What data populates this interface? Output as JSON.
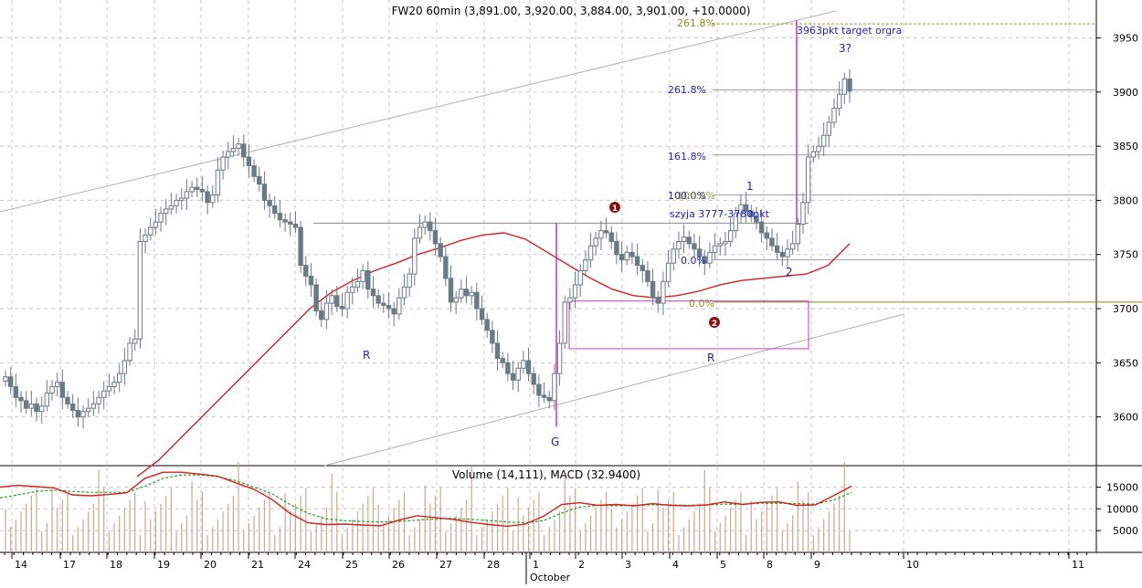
{
  "title": "FW20 60min (3,891.00, 3,920.00, 3,884.00, 3,901.00, +10.0000)",
  "lower_title": "Volume (14,111), MACD (32.9400)",
  "price_ticks": [
    "3600",
    "3650",
    "3700",
    "3750",
    "3800",
    "3850",
    "3900",
    "3950"
  ],
  "lower_ticks": [
    "5000",
    "10000",
    "15000"
  ],
  "date_labels": [
    "14",
    "17",
    "18",
    "19",
    "20",
    "21",
    "24",
    "25",
    "26",
    "27",
    "28",
    "1",
    "2",
    "3",
    "4",
    "5",
    "8",
    "9",
    "10",
    "11"
  ],
  "month_label": "October",
  "annotations": {
    "fib_top_1": "261.8%",
    "fib_top_2": "261.8%",
    "fib_161": "161.8%",
    "fib_100_a": "100.0%",
    "fib_100_b": "100.0%",
    "fib_0_a": "0.0%",
    "fib_0_b": "0.0%",
    "target": "3963pkt target orgra",
    "wave3": "3?",
    "wave1": "1",
    "wave2": "2",
    "neck": "szyja 3777-3780pkt",
    "marker1": "1",
    "marker2": "2",
    "label_r1": "R",
    "label_r2": "R",
    "label_g": "G"
  },
  "colors": {
    "candle": "#6a7a84",
    "ma": "#d42020",
    "macd": "#d42020",
    "signal": "#2a9a2a",
    "volume": "#c8a890",
    "fib_label": "#2020c0",
    "annotation_magenta": "#cc33cc",
    "marker": "#8b1010"
  },
  "chart_data": {
    "type": "candlestick",
    "instrument": "FW20",
    "interval": "60min",
    "ohlc_last": {
      "open": 3891.0,
      "high": 3920.0,
      "low": 3884.0,
      "close": 3901.0,
      "change": 10.0
    },
    "ylim": [
      3555,
      3985
    ],
    "xlabels": [
      "14",
      "17",
      "18",
      "19",
      "20",
      "21",
      "24",
      "25",
      "26",
      "27",
      "28",
      "1",
      "2",
      "3",
      "4",
      "5",
      "8",
      "9",
      "10",
      "11"
    ],
    "closes": [
      3637,
      3628,
      3618,
      3615,
      3608,
      3612,
      3605,
      3610,
      3622,
      3628,
      3632,
      3618,
      3612,
      3606,
      3600,
      3605,
      3608,
      3612,
      3618,
      3624,
      3628,
      3632,
      3640,
      3652,
      3668,
      3672,
      3762,
      3768,
      3775,
      3780,
      3788,
      3792,
      3795,
      3800,
      3802,
      3808,
      3812,
      3810,
      3808,
      3798,
      3805,
      3828,
      3840,
      3845,
      3848,
      3852,
      3840,
      3832,
      3822,
      3815,
      3800,
      3795,
      3788,
      3782,
      3780,
      3778,
      3775,
      3740,
      3730,
      3722,
      3698,
      3690,
      3705,
      3712,
      3702,
      3700,
      3715,
      3720,
      3725,
      3735,
      3718,
      3712,
      3705,
      3703,
      3700,
      3695,
      3710,
      3720,
      3732,
      3765,
      3775,
      3780,
      3772,
      3760,
      3748,
      3728,
      3706,
      3710,
      3718,
      3712,
      3715,
      3700,
      3690,
      3680,
      3668,
      3654,
      3650,
      3640,
      3634,
      3645,
      3652,
      3640,
      3630,
      3620,
      3618,
      3615,
      3640,
      3668,
      3706,
      3710,
      3722,
      3735,
      3745,
      3758,
      3765,
      3772,
      3770,
      3762,
      3750,
      3745,
      3752,
      3748,
      3740,
      3735,
      3725,
      3710,
      3705,
      3725,
      3742,
      3755,
      3762,
      3766,
      3760,
      3755,
      3748,
      3742,
      3752,
      3758,
      3760,
      3762,
      3772,
      3788,
      3796,
      3790,
      3785,
      3780,
      3770,
      3765,
      3758,
      3752,
      3748,
      3755,
      3760,
      3778,
      3798,
      3840,
      3845,
      3850,
      3860,
      3872,
      3885,
      3898,
      3912,
      3901
    ],
    "ma_series": [
      3545,
      3560,
      3580,
      3600,
      3620,
      3640,
      3660,
      3680,
      3700,
      3715,
      3726,
      3735,
      3742,
      3750,
      3756,
      3763,
      3768,
      3770,
      3764,
      3752,
      3740,
      3728,
      3718,
      3712,
      3710,
      3712,
      3716,
      3722,
      3726,
      3728,
      3730,
      3732,
      3740,
      3760
    ],
    "fibonacci": {
      "0.0%": 3745,
      "100.0%": 3805,
      "161.8%": 3842,
      "261.8%": 3902
    },
    "neckline": "3777-3780pkt",
    "target": 3963,
    "rect_zone": [
      3663,
      3707
    ],
    "volume_macd": {
      "volume_last": 14111,
      "macd_last": 32.94,
      "lower_ylim": [
        0,
        19500
      ],
      "macd_series": [
        15000,
        15400,
        15100,
        14800,
        13200,
        13000,
        13300,
        13700,
        17000,
        18400,
        18400,
        18000,
        17500,
        16000,
        14500,
        12200,
        9000,
        6800,
        6400,
        6500,
        6300,
        6100,
        7400,
        8400,
        8000,
        7600,
        6900,
        6400,
        6000,
        6500,
        8300,
        11000,
        11400,
        10800,
        11000,
        10700,
        11200,
        10800,
        10700,
        10900,
        11600,
        11000,
        11500,
        11600,
        10800,
        10900,
        13000,
        15200
      ],
      "signal_series": [
        12500,
        13200,
        14000,
        14300,
        14000,
        13800,
        13800,
        13800,
        15200,
        17000,
        17800,
        17800,
        17400,
        16500,
        15000,
        13500,
        11000,
        9000,
        7700,
        7300,
        7100,
        7000,
        7100,
        7400,
        7700,
        7800,
        7600,
        7300,
        7000,
        6800,
        7300,
        9000,
        10400,
        10800,
        10700,
        10800,
        10900,
        10900,
        10800,
        10900,
        11100,
        11100,
        11300,
        11300,
        11200,
        11100,
        12000,
        13800
      ]
    }
  }
}
